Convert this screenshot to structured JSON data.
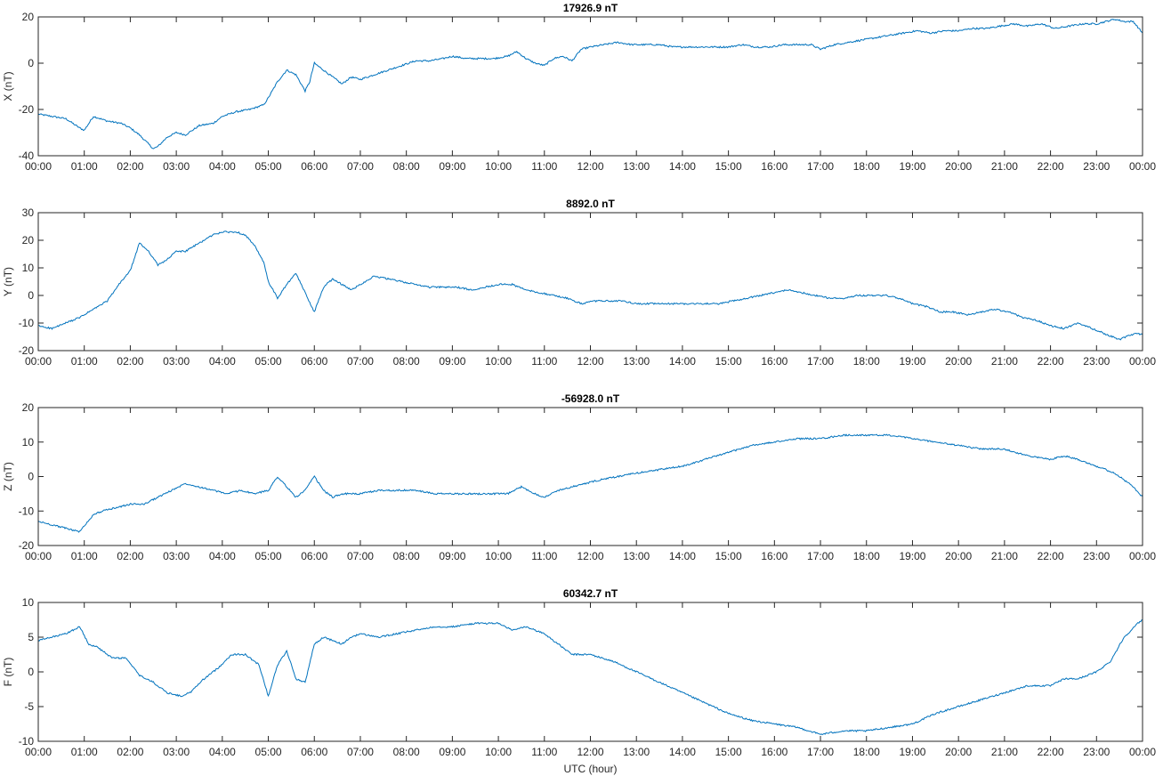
{
  "figure": {
    "xlabel": "UTC (hour)",
    "line_color": "#0072BD"
  },
  "chart_data": [
    {
      "type": "line",
      "title": "17926.9 nT",
      "ylabel": "X (nT)",
      "xlabel": "",
      "xlim": [
        0,
        24
      ],
      "ylim": [
        -40,
        20
      ],
      "yticks": [
        "-40",
        "-20",
        "0",
        "20"
      ],
      "xticks": [
        "00:00",
        "01:00",
        "02:00",
        "03:00",
        "04:00",
        "05:00",
        "06:00",
        "07:00",
        "08:00",
        "09:00",
        "10:00",
        "11:00",
        "12:00",
        "13:00",
        "14:00",
        "15:00",
        "16:00",
        "17:00",
        "18:00",
        "19:00",
        "20:00",
        "21:00",
        "22:00",
        "23:00",
        "00:00"
      ],
      "series": [
        {
          "x": [
            0,
            0.3,
            0.6,
            0.9,
            1.0,
            1.2,
            1.5,
            1.8,
            2.0,
            2.2,
            2.4,
            2.5,
            2.6,
            2.8,
            3.0,
            3.2,
            3.5,
            3.8,
            4.0,
            4.3,
            4.6,
            4.9,
            5.0,
            5.2,
            5.4,
            5.6,
            5.8,
            5.9,
            6.0,
            6.2,
            6.4,
            6.6,
            6.8,
            7.0,
            7.3,
            7.6,
            7.9,
            8.2,
            8.5,
            8.8,
            9.0,
            9.3,
            9.6,
            9.9,
            10.2,
            10.4,
            10.6,
            10.8,
            11.0,
            11.2,
            11.4,
            11.6,
            11.8,
            12.0,
            12.3,
            12.6,
            12.9,
            13.2,
            13.5,
            13.8,
            14.1,
            14.4,
            14.7,
            15.0,
            15.3,
            15.6,
            15.9,
            16.2,
            16.5,
            16.8,
            17.0,
            17.3,
            17.6,
            17.9,
            18.2,
            18.5,
            18.8,
            19.1,
            19.4,
            19.7,
            20.0,
            20.3,
            20.6,
            20.9,
            21.2,
            21.5,
            21.8,
            22.1,
            22.4,
            22.7,
            23.0,
            23.2,
            23.4,
            23.6,
            23.8,
            24.0
          ],
          "y": [
            -22,
            -23,
            -24,
            -28,
            -29,
            -23,
            -25,
            -26,
            -28,
            -31,
            -35,
            -37,
            -36,
            -32,
            -30,
            -31,
            -27,
            -26,
            -23,
            -21,
            -20,
            -18,
            -15,
            -8,
            -3,
            -5,
            -12,
            -8,
            0,
            -3,
            -6,
            -9,
            -6,
            -7,
            -5,
            -3,
            -1,
            1,
            1,
            2,
            3,
            2,
            2,
            2,
            3,
            5,
            2,
            0,
            -1,
            2,
            3,
            1,
            6,
            7,
            8,
            9,
            8,
            8,
            8,
            7,
            7,
            7,
            7,
            7,
            8,
            7,
            7,
            8,
            8,
            8,
            6,
            8,
            9,
            10,
            11,
            12,
            13,
            14,
            13,
            14,
            14,
            15,
            15,
            16,
            17,
            16,
            17,
            15,
            16,
            17,
            17,
            18,
            19,
            18,
            18,
            13
          ]
        }
      ]
    },
    {
      "type": "line",
      "title": "8892.0 nT",
      "ylabel": "Y (nT)",
      "xlabel": "",
      "xlim": [
        0,
        24
      ],
      "ylim": [
        -20,
        30
      ],
      "yticks": [
        "-20",
        "-10",
        "0",
        "10",
        "20",
        "30"
      ],
      "xticks": [
        "00:00",
        "01:00",
        "02:00",
        "03:00",
        "04:00",
        "05:00",
        "06:00",
        "07:00",
        "08:00",
        "09:00",
        "10:00",
        "11:00",
        "12:00",
        "13:00",
        "14:00",
        "15:00",
        "16:00",
        "17:00",
        "18:00",
        "19:00",
        "20:00",
        "21:00",
        "22:00",
        "23:00",
        "00:00"
      ],
      "series": [
        {
          "x": [
            0,
            0.3,
            0.6,
            0.9,
            1.2,
            1.5,
            1.8,
            2.0,
            2.2,
            2.4,
            2.6,
            2.8,
            3.0,
            3.2,
            3.5,
            3.8,
            4.0,
            4.3,
            4.5,
            4.7,
            4.9,
            5.0,
            5.2,
            5.4,
            5.6,
            5.8,
            6.0,
            6.2,
            6.4,
            6.6,
            6.8,
            7.0,
            7.3,
            7.6,
            7.9,
            8.2,
            8.5,
            8.8,
            9.1,
            9.4,
            9.7,
            10.0,
            10.3,
            10.6,
            10.9,
            11.2,
            11.5,
            11.8,
            12.1,
            12.4,
            12.7,
            13.0,
            13.3,
            13.6,
            13.9,
            14.2,
            14.5,
            14.8,
            15.1,
            15.4,
            15.7,
            16.0,
            16.3,
            16.6,
            16.9,
            17.2,
            17.5,
            17.8,
            18.1,
            18.4,
            18.7,
            19.0,
            19.3,
            19.6,
            19.9,
            20.2,
            20.5,
            20.8,
            21.1,
            21.4,
            21.7,
            22.0,
            22.3,
            22.6,
            22.9,
            23.2,
            23.5,
            23.8,
            24.0
          ],
          "y": [
            -11,
            -12,
            -10,
            -8,
            -5,
            -2,
            5,
            9,
            19,
            16,
            11,
            13,
            16,
            16,
            19,
            22,
            23,
            23,
            22,
            18,
            12,
            5,
            -1,
            4,
            8,
            1,
            -6,
            3,
            6,
            4,
            2,
            4,
            7,
            6,
            5,
            4,
            3,
            3,
            3,
            2,
            3,
            4,
            4,
            2,
            1,
            0,
            -1,
            -3,
            -2,
            -2,
            -2,
            -3,
            -3,
            -3,
            -3,
            -3,
            -3,
            -3,
            -2,
            -1,
            0,
            1,
            2,
            1,
            0,
            -1,
            -1,
            0,
            0,
            0,
            -1,
            -3,
            -4,
            -6,
            -6,
            -7,
            -6,
            -5,
            -6,
            -8,
            -9,
            -11,
            -12,
            -10,
            -12,
            -14,
            -16,
            -14,
            -14
          ]
        }
      ]
    },
    {
      "type": "line",
      "title": "-56928.0 nT",
      "ylabel": "Z (nT)",
      "xlabel": "",
      "xlim": [
        0,
        24
      ],
      "ylim": [
        -20,
        20
      ],
      "yticks": [
        "-20",
        "-10",
        "0",
        "10",
        "20"
      ],
      "xticks": [
        "00:00",
        "01:00",
        "02:00",
        "03:00",
        "04:00",
        "05:00",
        "06:00",
        "07:00",
        "08:00",
        "09:00",
        "10:00",
        "11:00",
        "12:00",
        "13:00",
        "14:00",
        "15:00",
        "16:00",
        "17:00",
        "18:00",
        "19:00",
        "20:00",
        "21:00",
        "22:00",
        "23:00",
        "00:00"
      ],
      "series": [
        {
          "x": [
            0,
            0.3,
            0.6,
            0.9,
            1.2,
            1.4,
            1.7,
            2.0,
            2.3,
            2.6,
            2.9,
            3.2,
            3.5,
            3.8,
            4.1,
            4.4,
            4.7,
            5.0,
            5.2,
            5.4,
            5.6,
            5.8,
            6.0,
            6.2,
            6.4,
            6.6,
            6.8,
            7.0,
            7.4,
            7.8,
            8.2,
            8.6,
            9.0,
            9.4,
            9.8,
            10.2,
            10.5,
            10.8,
            11.0,
            11.3,
            11.6,
            11.9,
            12.2,
            12.6,
            13.0,
            13.5,
            14.0,
            14.5,
            15.0,
            15.5,
            16.0,
            16.5,
            17.0,
            17.5,
            18.0,
            18.5,
            19.0,
            19.5,
            20.0,
            20.5,
            21.0,
            21.5,
            22.0,
            22.3,
            22.6,
            23.0,
            23.4,
            23.8,
            24.0
          ],
          "y": [
            -13,
            -14,
            -15,
            -16,
            -11,
            -10,
            -9,
            -8,
            -8,
            -6,
            -4,
            -2,
            -3,
            -4,
            -5,
            -4,
            -5,
            -4,
            0,
            -3,
            -6,
            -4,
            0,
            -4,
            -6,
            -5,
            -5,
            -5,
            -4,
            -4,
            -4,
            -5,
            -5,
            -5,
            -5,
            -5,
            -3,
            -5,
            -6,
            -4,
            -3,
            -2,
            -1,
            0,
            1,
            2,
            3,
            5,
            7,
            9,
            10,
            11,
            11,
            12,
            12,
            12,
            11,
            10,
            9,
            8,
            8,
            6,
            5,
            6,
            5,
            3,
            1,
            -3,
            -6
          ]
        }
      ]
    },
    {
      "type": "line",
      "title": "60342.7 nT",
      "ylabel": "F (nT)",
      "xlabel": "UTC (hour)",
      "xlim": [
        0,
        24
      ],
      "ylim": [
        -10,
        10
      ],
      "yticks": [
        "-10",
        "-5",
        "0",
        "5",
        "10"
      ],
      "xticks": [
        "00:00",
        "01:00",
        "02:00",
        "03:00",
        "04:00",
        "05:00",
        "06:00",
        "07:00",
        "08:00",
        "09:00",
        "10:00",
        "11:00",
        "12:00",
        "13:00",
        "14:00",
        "15:00",
        "16:00",
        "17:00",
        "18:00",
        "19:00",
        "20:00",
        "21:00",
        "22:00",
        "23:00",
        "00:00"
      ],
      "series": [
        {
          "x": [
            0,
            0.3,
            0.6,
            0.9,
            1.1,
            1.3,
            1.6,
            1.9,
            2.2,
            2.5,
            2.8,
            3.1,
            3.3,
            3.6,
            3.9,
            4.2,
            4.5,
            4.8,
            5.0,
            5.2,
            5.4,
            5.6,
            5.8,
            6.0,
            6.2,
            6.4,
            6.6,
            6.8,
            7.0,
            7.4,
            7.8,
            8.2,
            8.6,
            9.0,
            9.5,
            10.0,
            10.3,
            10.6,
            11.0,
            11.3,
            11.6,
            12.0,
            12.5,
            13.0,
            13.5,
            14.0,
            14.5,
            15.0,
            15.5,
            16.0,
            16.5,
            17.0,
            17.5,
            18.0,
            18.5,
            19.0,
            19.5,
            20.0,
            20.5,
            21.0,
            21.5,
            22.0,
            22.3,
            22.6,
            23.0,
            23.3,
            23.6,
            23.9,
            24.0
          ],
          "y": [
            4.5,
            5,
            5.5,
            6.5,
            4,
            3.5,
            2,
            2,
            -0.5,
            -1.5,
            -3,
            -3.5,
            -3,
            -1,
            0.5,
            2.5,
            2.5,
            1,
            -3.5,
            1,
            3,
            -1,
            -1.5,
            4,
            5,
            4.5,
            4,
            5,
            5.5,
            5,
            5.5,
            6,
            6.5,
            6.5,
            7,
            7,
            6,
            6.5,
            5.5,
            4,
            2.5,
            2.5,
            1.5,
            0,
            -1.5,
            -3,
            -4.5,
            -6,
            -7,
            -7.5,
            -8,
            -9,
            -8.5,
            -8.5,
            -8,
            -7.5,
            -6,
            -5,
            -4,
            -3,
            -2,
            -2,
            -1,
            -1,
            0,
            1.5,
            5,
            7,
            7.5
          ]
        }
      ]
    }
  ]
}
